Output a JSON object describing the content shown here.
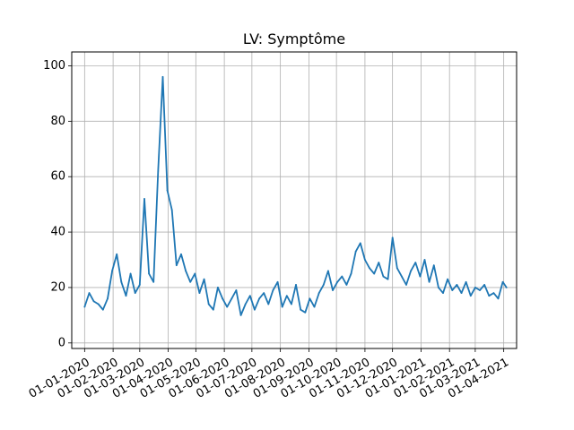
{
  "chart_data": {
    "type": "line",
    "title": "LV: Symptôme",
    "xlabel": "",
    "ylabel": "",
    "x_axis_type": "date",
    "xlim": [
      "2019-12-18",
      "2021-04-15"
    ],
    "ylim": [
      -2,
      105
    ],
    "grid": true,
    "line_color": "#1f77b4",
    "x_ticks": [
      {
        "date": "2020-01-01",
        "label": "01-01-2020"
      },
      {
        "date": "2020-02-01",
        "label": "01-02-2020"
      },
      {
        "date": "2020-03-01",
        "label": "01-03-2020"
      },
      {
        "date": "2020-04-01",
        "label": "01-04-2020"
      },
      {
        "date": "2020-05-01",
        "label": "01-05-2020"
      },
      {
        "date": "2020-06-01",
        "label": "01-06-2020"
      },
      {
        "date": "2020-07-01",
        "label": "01-07-2020"
      },
      {
        "date": "2020-08-01",
        "label": "01-08-2020"
      },
      {
        "date": "2020-09-01",
        "label": "01-09-2020"
      },
      {
        "date": "2020-10-01",
        "label": "01-10-2020"
      },
      {
        "date": "2020-11-01",
        "label": "01-11-2020"
      },
      {
        "date": "2020-12-01",
        "label": "01-12-2020"
      },
      {
        "date": "2021-01-01",
        "label": "01-01-2021"
      },
      {
        "date": "2021-02-01",
        "label": "01-02-2021"
      },
      {
        "date": "2021-03-01",
        "label": "01-03-2021"
      },
      {
        "date": "2021-04-01",
        "label": "01-04-2021"
      }
    ],
    "y_ticks": [
      0,
      20,
      40,
      60,
      80,
      100
    ],
    "series": [
      {
        "x": [
          "2020-01-01",
          "2020-01-06",
          "2020-01-11",
          "2020-01-16",
          "2020-01-21",
          "2020-01-26",
          "2020-01-31",
          "2020-02-05",
          "2020-02-10",
          "2020-02-15",
          "2020-02-20",
          "2020-02-25",
          "2020-03-01",
          "2020-03-06",
          "2020-03-11",
          "2020-03-16",
          "2020-03-21",
          "2020-03-26",
          "2020-03-31",
          "2020-04-05",
          "2020-04-10",
          "2020-04-15",
          "2020-04-20",
          "2020-04-25",
          "2020-04-30",
          "2020-05-05",
          "2020-05-10",
          "2020-05-15",
          "2020-05-20",
          "2020-05-25",
          "2020-05-30",
          "2020-06-04",
          "2020-06-09",
          "2020-06-14",
          "2020-06-19",
          "2020-06-24",
          "2020-06-29",
          "2020-07-04",
          "2020-07-09",
          "2020-07-14",
          "2020-07-19",
          "2020-07-24",
          "2020-07-29",
          "2020-08-03",
          "2020-08-08",
          "2020-08-13",
          "2020-08-18",
          "2020-08-23",
          "2020-08-28",
          "2020-09-02",
          "2020-09-07",
          "2020-09-12",
          "2020-09-17",
          "2020-09-22",
          "2020-09-27",
          "2020-10-02",
          "2020-10-07",
          "2020-10-12",
          "2020-10-17",
          "2020-10-22",
          "2020-10-27",
          "2020-11-01",
          "2020-11-06",
          "2020-11-11",
          "2020-11-16",
          "2020-11-21",
          "2020-11-26",
          "2020-12-01",
          "2020-12-06",
          "2020-12-11",
          "2020-12-16",
          "2020-12-21",
          "2020-12-26",
          "2020-12-31",
          "2021-01-05",
          "2021-01-10",
          "2021-01-15",
          "2021-01-20",
          "2021-01-25",
          "2021-01-30",
          "2021-02-04",
          "2021-02-09",
          "2021-02-14",
          "2021-02-19",
          "2021-02-24",
          "2021-03-01",
          "2021-03-06",
          "2021-03-11",
          "2021-03-16",
          "2021-03-21",
          "2021-03-26",
          "2021-03-31",
          "2021-04-04"
        ],
        "values": [
          13,
          18,
          15,
          14,
          12,
          16,
          26,
          32,
          22,
          17,
          25,
          18,
          21,
          52,
          25,
          22,
          62,
          96,
          55,
          48,
          28,
          32,
          26,
          22,
          25,
          18,
          23,
          14,
          12,
          20,
          16,
          13,
          16,
          19,
          10,
          14,
          17,
          12,
          16,
          18,
          14,
          19,
          22,
          13,
          17,
          14,
          21,
          12,
          11,
          16,
          13,
          18,
          21,
          26,
          19,
          22,
          24,
          21,
          25,
          33,
          36,
          30,
          27,
          25,
          29,
          24,
          23,
          38,
          27,
          24,
          21,
          26,
          29,
          24,
          30,
          22,
          28,
          20,
          18,
          23,
          19,
          21,
          18,
          22,
          17,
          20,
          19,
          21,
          17,
          18,
          16,
          22,
          20
        ]
      }
    ]
  }
}
